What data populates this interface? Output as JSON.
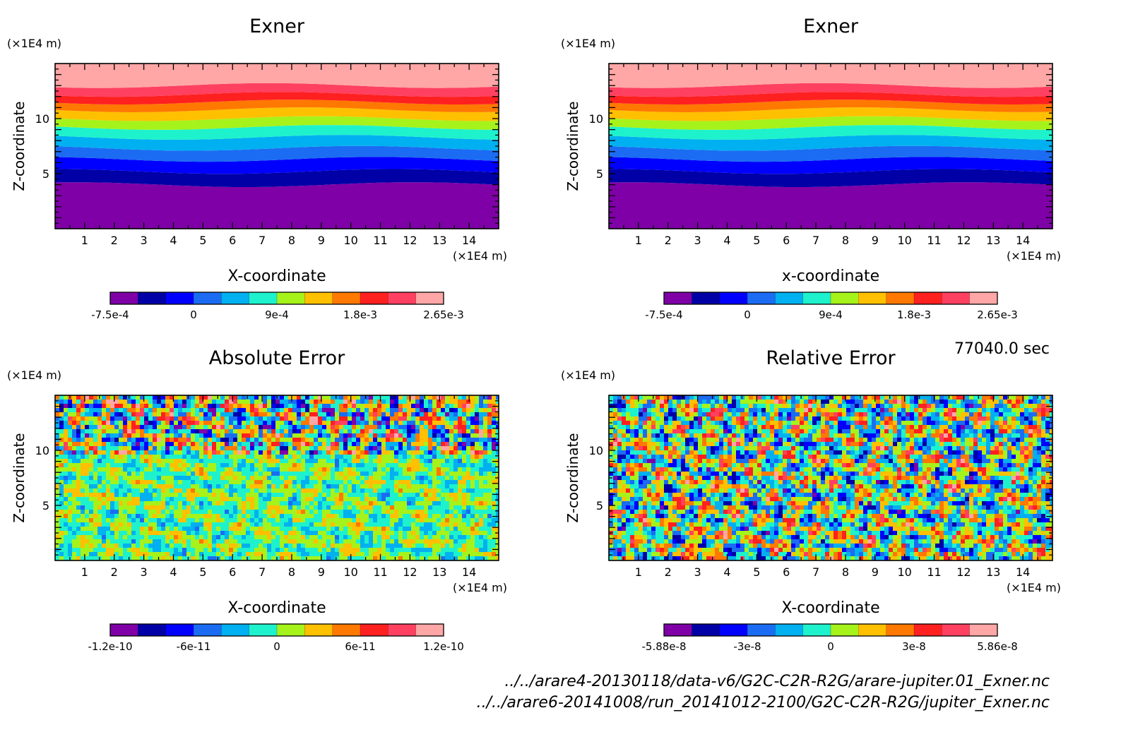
{
  "figure": {
    "time_label": "77040.0 sec",
    "footer_lines": [
      "../../arare4-20130118/data-v6/G2C-C2R-R2G/arare-jupiter.01_Exner.nc",
      "../../arare6-20141008/run_20141012-2100/G2C-C2R-R2G/jupiter_Exner.nc"
    ]
  },
  "colorscale": [
    "#7f00a6",
    "#0000a6",
    "#0000ff",
    "#1b6cf2",
    "#00b0f0",
    "#1ef2cc",
    "#a6f21b",
    "#ffc000",
    "#ff7800",
    "#ff2020",
    "#ff4060",
    "#ffa6a6"
  ],
  "chart_data": [
    {
      "type": "heatmap",
      "title": "Exner",
      "xlabel": "X-coordinate",
      "ylabel": "Z-coordinate",
      "x_unit": "(×1E4 m)",
      "y_unit": "(×1E4 m)",
      "xlim": [
        0,
        15
      ],
      "ylim": [
        0,
        15
      ],
      "x_ticks": [
        1,
        2,
        3,
        4,
        5,
        6,
        7,
        8,
        9,
        10,
        11,
        12,
        13,
        14
      ],
      "y_ticks": [
        5,
        10
      ],
      "pattern": "layered",
      "colorbar": {
        "labels": [
          "-7.5e-4",
          "0",
          "9e-4",
          "1.8e-3",
          "2.65e-3"
        ],
        "min": -0.00075,
        "max": 0.00265
      }
    },
    {
      "type": "heatmap",
      "title": "Exner",
      "xlabel": "x-coordinate",
      "ylabel": "Z-coordinate",
      "x_unit": "(×1E4 m)",
      "y_unit": "(×1E4 m)",
      "xlim": [
        0,
        15
      ],
      "ylim": [
        0,
        15
      ],
      "x_ticks": [
        1,
        2,
        3,
        4,
        5,
        6,
        7,
        8,
        9,
        10,
        11,
        12,
        13,
        14
      ],
      "y_ticks": [
        5,
        10
      ],
      "pattern": "layered",
      "colorbar": {
        "labels": [
          "-7.5e-4",
          "0",
          "9e-4",
          "1.8e-3",
          "2.65e-3"
        ],
        "min": -0.00075,
        "max": 0.00265
      }
    },
    {
      "type": "heatmap",
      "title": "Absolute Error",
      "xlabel": "X-coordinate",
      "ylabel": "Z-coordinate",
      "x_unit": "(×1E4 m)",
      "y_unit": "(×1E4 m)",
      "xlim": [
        0,
        15
      ],
      "ylim": [
        0,
        15
      ],
      "x_ticks": [
        1,
        2,
        3,
        4,
        5,
        6,
        7,
        8,
        9,
        10,
        11,
        12,
        13,
        14
      ],
      "y_ticks": [
        5,
        10
      ],
      "pattern": "noise-abs",
      "colorbar": {
        "labels": [
          "-1.2e-10",
          "-6e-11",
          "0",
          "6e-11",
          "1.2e-10"
        ],
        "min": -1.2e-10,
        "max": 1.2e-10
      }
    },
    {
      "type": "heatmap",
      "title": "Relative Error",
      "xlabel": "X-coordinate",
      "ylabel": "Z-coordinate",
      "x_unit": "(×1E4 m)",
      "y_unit": "(×1E4 m)",
      "xlim": [
        0,
        15
      ],
      "ylim": [
        0,
        15
      ],
      "x_ticks": [
        1,
        2,
        3,
        4,
        5,
        6,
        7,
        8,
        9,
        10,
        11,
        12,
        13,
        14
      ],
      "y_ticks": [
        5,
        10
      ],
      "pattern": "noise-rel",
      "colorbar": {
        "labels": [
          "-5.88e-8",
          "-3e-8",
          "0",
          "3e-8",
          "5.86e-8"
        ],
        "min": -5.88e-08,
        "max": 5.86e-08
      }
    }
  ]
}
